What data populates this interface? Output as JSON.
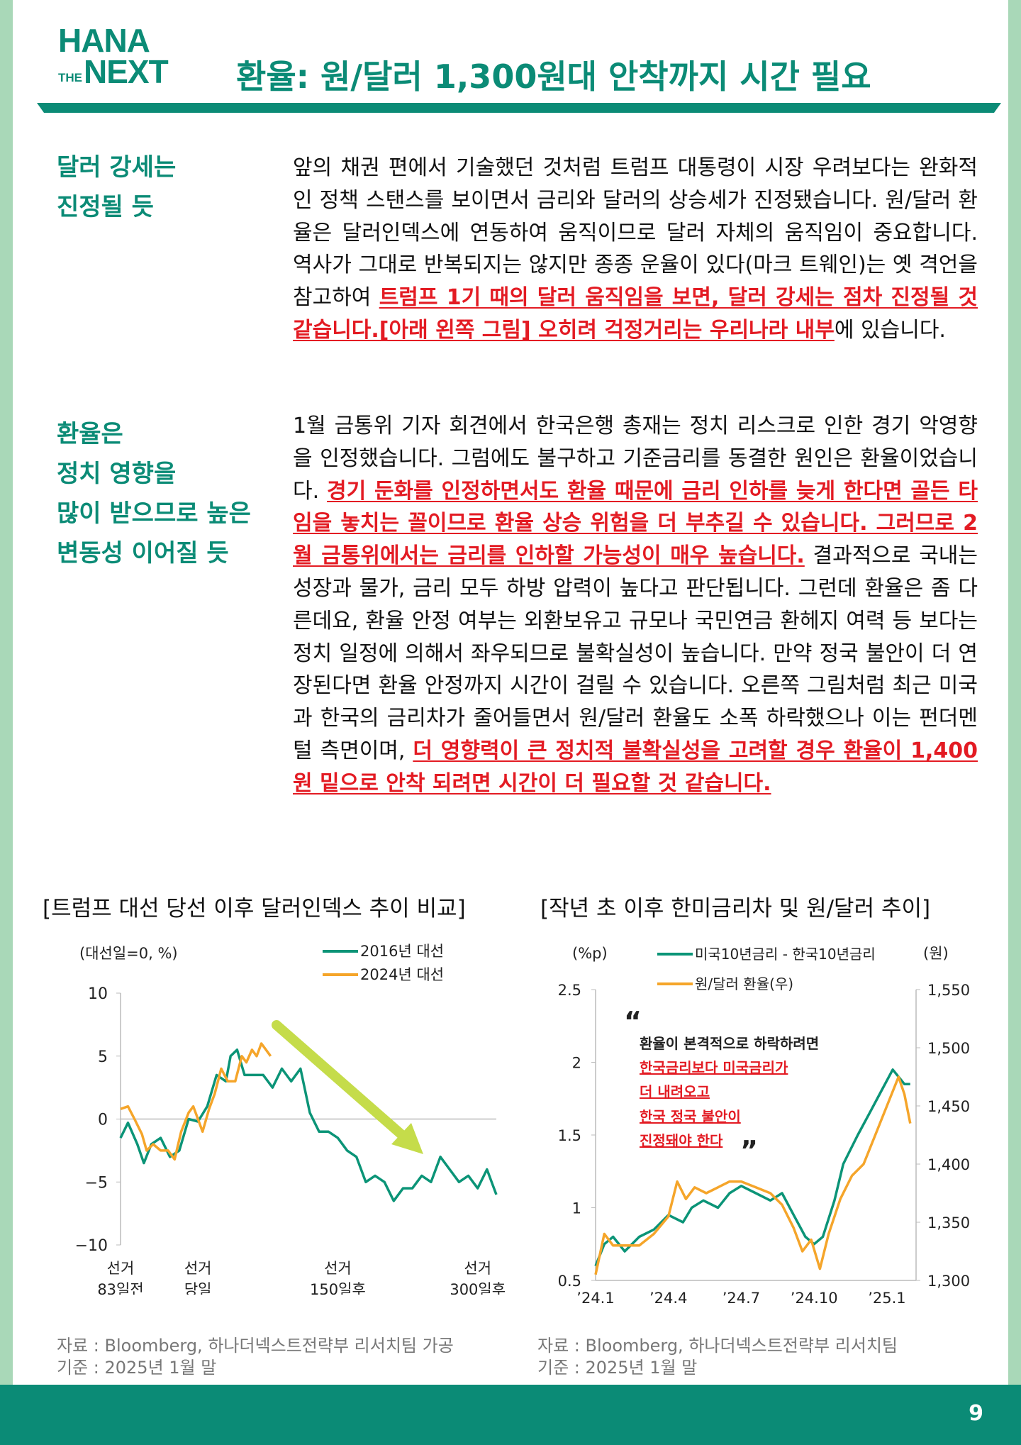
{
  "logo": {
    "line1": "HANA",
    "the": "THE",
    "next": "NEXT"
  },
  "title": "환율: 원/달러 1,300원대 안착까지 시간 필요",
  "section1": {
    "side": [
      "달러 강세는",
      "진정될 듯"
    ],
    "p_a": "앞의 채권 편에서 기술했던 것처럼 트럼프 대통령이 시장 우려보다는 완화적인 정책 스탠스를 보이면서 금리와 달러의 상승세가 진정됐습니다. 원/달러 환율은 달러인덱스에 연동하여 움직이므로 달러 자체의 움직임이 중요합니다. 역사가 그대로 반복되지는 않지만 종종 운율이 있다(마크 트웨인)는 옛 격언을 참고하여 ",
    "p_hl": "트럼프 1기 때의 달러 움직임을 보면, 달러 강세는 점차 진정될 것 같습니다.[아래 왼쪽 그림] 오히려 걱정거리는 우리나라 내부",
    "p_b": "에 있습니다."
  },
  "section2": {
    "side": [
      "환율은",
      "정치 영향을",
      "많이 받으므로 높은",
      "변동성 이어질 듯"
    ],
    "p_a": "1월 금통위 기자 회견에서 한국은행 총재는 정치 리스크로 인한 경기 악영향을 인정했습니다. 그럼에도 불구하고 기준금리를 동결한 원인은 환율이었습니다. ",
    "p_hl1": "경기 둔화를 인정하면서도 환율 때문에 금리 인하를 늦게 한다면 골든 타임을 놓치는 꼴이므로 환율 상승 위험을 더 부추길 수 있습니다. 그러므로 2월 금통위에서는 금리를 인하할 가능성이 매우 높습니다.",
    "p_b": " 결과적으로 국내는 성장과 물가, 금리 모두 하방 압력이 높다고 판단됩니다. 그런데 환율은 좀 다른데요, 환율 안정 여부는 외환보유고 규모나 국민연금 환헤지 여력 등 보다는 정치 일정에 의해서 좌우되므로 불확실성이 높습니다. 만약 정국 불안이 더 연장된다면 환율 안정까지 시간이 걸릴 수 있습니다. 오른쪽 그림처럼 최근 미국과 한국의 금리차가 줄어들면서 원/달러 환율도 소폭 하락했으나 이는 펀더멘털 측면이며, ",
    "p_hl2": "더 영향력이 큰 정치적 불확실성을 고려할 경우 환율이 1,400원 밑으로 안착 되려면 시간이 더 필요할 것 같습니다."
  },
  "chart_data": [
    {
      "type": "line",
      "title": "[트럼프 대선 당선 이후 달러인덱스 추이 비교]",
      "ylabel": "(대선일=0, %)",
      "ylim": [
        -10,
        10
      ],
      "yticks": [
        "10",
        "5",
        "0",
        "−5",
        "−10"
      ],
      "xlim": [
        -83,
        320
      ],
      "xticks": [
        {
          "x": -83,
          "label": [
            "선거",
            "83일전"
          ]
        },
        {
          "x": 0,
          "label": [
            "선거",
            "당일"
          ]
        },
        {
          "x": 150,
          "label": [
            "선거",
            "150일후"
          ]
        },
        {
          "x": 300,
          "label": [
            "선거",
            "300일후"
          ]
        }
      ],
      "series": [
        {
          "name": "2016년 대선",
          "color": "#0b9477",
          "x": [
            -83,
            -75,
            -65,
            -58,
            -50,
            -40,
            -30,
            -20,
            -10,
            0,
            10,
            20,
            30,
            35,
            42,
            50,
            60,
            70,
            80,
            90,
            100,
            110,
            120,
            130,
            140,
            150,
            160,
            170,
            180,
            190,
            200,
            210,
            220,
            230,
            240,
            250,
            260,
            270,
            280,
            290,
            300,
            310,
            315,
            320
          ],
          "y": [
            -1.5,
            -0.3,
            -2,
            -3.5,
            -2,
            -1.5,
            -3,
            -2.5,
            0,
            -0.2,
            1,
            3.5,
            3,
            5,
            5.5,
            3.5,
            3.5,
            3.5,
            2.5,
            4,
            3,
            4,
            0.5,
            -1,
            -1,
            -1.5,
            -2.5,
            -3,
            -5,
            -4.5,
            -5,
            -6.5,
            -5.5,
            -5.5,
            -4.5,
            -5,
            -3,
            -4,
            -5,
            -4.5,
            -5.5,
            -4,
            -5,
            -6
          ]
        },
        {
          "name": "2024년 대선",
          "color": "#f5a52a",
          "x": [
            -83,
            -75,
            -68,
            -60,
            -55,
            -48,
            -40,
            -32,
            -25,
            -18,
            -10,
            -5,
            0,
            5,
            12,
            18,
            25,
            32,
            40,
            47,
            52,
            58,
            63,
            68,
            73,
            78
          ],
          "y": [
            0.8,
            1,
            0,
            -1.2,
            -2.5,
            -2,
            -2.5,
            -2.5,
            -3.2,
            -1,
            0.5,
            1,
            0,
            -1,
            0.8,
            2,
            4,
            3,
            3,
            5,
            4.5,
            5.5,
            5,
            6,
            5.5,
            5
          ]
        }
      ],
      "annotation": "arrow-down"
    },
    {
      "type": "line",
      "title": "[작년 초 이후 한미금리차 및 원/달러 추이]",
      "ylabel_left": "(%p)",
      "ylabel_right": "(원)",
      "ylim_left": [
        0.5,
        2.5
      ],
      "ylim_right": [
        1300,
        1550
      ],
      "yticks_left": [
        "0.5",
        "1",
        "1.5",
        "2",
        "2.5"
      ],
      "yticks_right": [
        "1,300",
        "1,350",
        "1,400",
        "1,450",
        "1,500",
        "1,550"
      ],
      "xticks": [
        "’24.1",
        "’24.4",
        "’24.7",
        "’24.10",
        "’25.1"
      ],
      "xlim": [
        2024.0,
        2025.1
      ],
      "series": [
        {
          "name": "미국10년금리 - 한국10년금리",
          "axis": "left",
          "color": "#0b9477",
          "x": [
            2024.0,
            2024.03,
            2024.06,
            2024.1,
            2024.15,
            2024.2,
            2024.25,
            2024.3,
            2024.33,
            2024.37,
            2024.42,
            2024.46,
            2024.5,
            2024.55,
            2024.6,
            2024.64,
            2024.68,
            2024.72,
            2024.75,
            2024.78,
            2024.82,
            2024.85,
            2024.9,
            2024.94,
            2024.98,
            2025.02,
            2025.06,
            2025.08
          ],
          "y": [
            0.6,
            0.75,
            0.8,
            0.7,
            0.8,
            0.85,
            0.95,
            0.9,
            1.0,
            1.05,
            1.0,
            1.1,
            1.15,
            1.1,
            1.05,
            1.1,
            0.95,
            0.8,
            0.75,
            0.8,
            1.05,
            1.3,
            1.5,
            1.65,
            1.8,
            1.95,
            1.85,
            1.85
          ]
        },
        {
          "name": "원/달러 환율(우)",
          "axis": "right",
          "color": "#f5a52a",
          "x": [
            2024.0,
            2024.03,
            2024.06,
            2024.1,
            2024.15,
            2024.2,
            2024.25,
            2024.28,
            2024.31,
            2024.34,
            2024.38,
            2024.42,
            2024.46,
            2024.5,
            2024.55,
            2024.6,
            2024.64,
            2024.68,
            2024.71,
            2024.74,
            2024.77,
            2024.8,
            2024.84,
            2024.88,
            2024.92,
            2024.96,
            2025.0,
            2025.04,
            2025.06,
            2025.08
          ],
          "y": [
            1305,
            1340,
            1330,
            1330,
            1330,
            1340,
            1355,
            1385,
            1370,
            1380,
            1375,
            1380,
            1385,
            1385,
            1380,
            1375,
            1365,
            1345,
            1325,
            1335,
            1310,
            1340,
            1370,
            1390,
            1400,
            1425,
            1450,
            1475,
            1460,
            1435
          ]
        }
      ],
      "annotation": {
        "open_quote": "“",
        "line1": "환율이 본격적으로 하락하려면",
        "line2": "한국금리보다 미국금리가",
        "line3": "더 내려오고",
        "line4": "한국 정국 불안이",
        "line5": "진정돼야 한다",
        "close_quote": "”"
      }
    }
  ],
  "source_left": [
    "자료 : Bloomberg, 하나더넥스트전략부 리서치팀 가공",
    "기준 : 2025년 1월 말"
  ],
  "source_right": [
    "자료 : Bloomberg, 하나더넥스트전략부 리서치팀",
    "기준 : 2025년 1월 말"
  ],
  "page_number": "9"
}
